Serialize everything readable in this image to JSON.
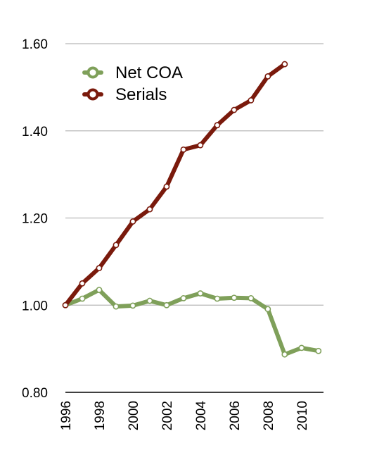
{
  "chart_data": {
    "type": "line",
    "title": "",
    "xlabel": "",
    "ylabel": "",
    "x": [
      1996,
      1997,
      1998,
      1999,
      2000,
      2001,
      2002,
      2003,
      2004,
      2005,
      2006,
      2007,
      2008,
      2009,
      2010,
      2011
    ],
    "x_ticks": [
      "1996",
      "1998",
      "2000",
      "2002",
      "2004",
      "2006",
      "2008",
      "2010"
    ],
    "y_ticks": [
      "0.80",
      "1.00",
      "1.20",
      "1.40",
      "1.60"
    ],
    "ylim": [
      0.8,
      1.6
    ],
    "grid": "horizontal",
    "legend_position": "top-left",
    "series": [
      {
        "name": "Net COA",
        "color": "#7fa05a",
        "values": [
          1.0,
          1.015,
          1.035,
          0.997,
          0.999,
          1.01,
          1.0,
          1.016,
          1.027,
          1.015,
          1.017,
          1.016,
          0.991,
          0.887,
          0.902,
          0.895
        ]
      },
      {
        "name": "Serials",
        "color": "#7a1a0c",
        "values": [
          1.0,
          1.05,
          1.085,
          1.138,
          1.192,
          1.22,
          1.272,
          1.357,
          1.367,
          1.413,
          1.448,
          1.47,
          1.525,
          1.553,
          null,
          null
        ]
      }
    ]
  }
}
